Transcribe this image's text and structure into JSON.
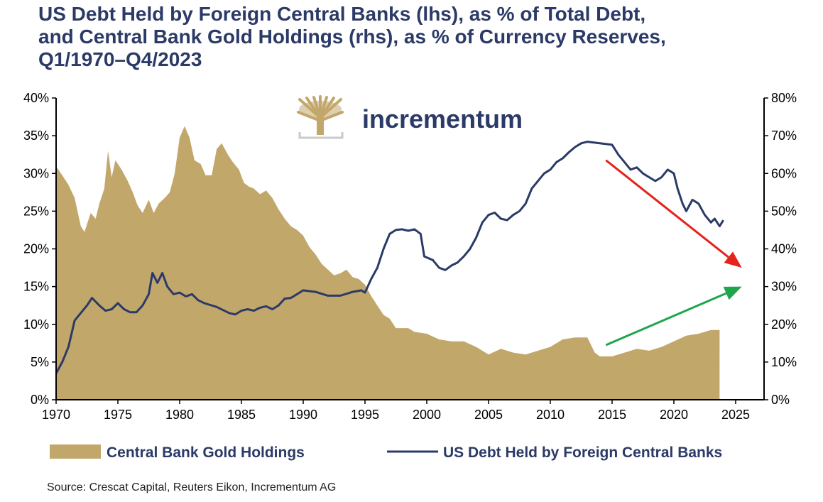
{
  "title_lines": [
    "US Debt Held by Foreign Central Banks (lhs), as % of Total Debt,",
    "and Central Bank Gold Holdings (rhs), as % of Currency Reserves,",
    "Q1/1970–Q4/2023"
  ],
  "logo": {
    "text": "incrementum",
    "icon": "tree-logo-icon"
  },
  "source": "Source: Crescat Capital, Reuters Eikon, Incrementum AG",
  "colors": {
    "gold": "#c2a76b",
    "navy": "#2b3a67",
    "red_arrow": "#e5231b",
    "green_arrow": "#1fa64a",
    "axis": "#000000"
  },
  "chart_data": {
    "type": "area",
    "x_ticks": [
      "1970",
      "1975",
      "1980",
      "1985",
      "1990",
      "1995",
      "2000",
      "2005",
      "2010",
      "2015",
      "2020",
      "2025"
    ],
    "xlim": [
      1970,
      2027.3
    ],
    "left_axis": {
      "ticks": [
        "0%",
        "5%",
        "10%",
        "15%",
        "20%",
        "25%",
        "30%",
        "35%",
        "40%"
      ],
      "ylim": [
        0,
        40
      ]
    },
    "right_axis": {
      "ticks": [
        "0%",
        "10%",
        "20%",
        "30%",
        "40%",
        "50%",
        "60%",
        "70%",
        "80%"
      ],
      "ylim": [
        0,
        80
      ]
    },
    "legend": {
      "position": "bottom"
    },
    "series": [
      {
        "name": "Central Bank Gold Holdings",
        "kind": "area",
        "axis": "right",
        "points": [
          [
            1970.0,
            61.9
          ],
          [
            1970.5,
            59.5
          ],
          [
            1971.0,
            57.0
          ],
          [
            1971.5,
            53.5
          ],
          [
            1972.0,
            46.0
          ],
          [
            1972.3,
            44.5
          ],
          [
            1972.8,
            49.5
          ],
          [
            1973.2,
            48.0
          ],
          [
            1973.5,
            52.0
          ],
          [
            1973.9,
            56.0
          ],
          [
            1974.2,
            66.0
          ],
          [
            1974.5,
            59.0
          ],
          [
            1974.8,
            63.5
          ],
          [
            1975.3,
            61.0
          ],
          [
            1975.8,
            58.0
          ],
          [
            1976.2,
            55.0
          ],
          [
            1976.6,
            51.5
          ],
          [
            1977.0,
            49.5
          ],
          [
            1977.5,
            53.0
          ],
          [
            1977.9,
            49.5
          ],
          [
            1978.3,
            52.0
          ],
          [
            1978.8,
            53.5
          ],
          [
            1979.2,
            55.0
          ],
          [
            1979.6,
            60.0
          ],
          [
            1980.0,
            69.5
          ],
          [
            1980.4,
            72.5
          ],
          [
            1980.8,
            69.5
          ],
          [
            1981.2,
            63.5
          ],
          [
            1981.7,
            62.5
          ],
          [
            1982.1,
            59.5
          ],
          [
            1982.6,
            59.5
          ],
          [
            1983.0,
            66.5
          ],
          [
            1983.4,
            68.0
          ],
          [
            1983.9,
            65.0
          ],
          [
            1984.3,
            63.0
          ],
          [
            1984.8,
            61.0
          ],
          [
            1985.2,
            57.5
          ],
          [
            1985.6,
            56.5
          ],
          [
            1986.0,
            56.0
          ],
          [
            1986.5,
            54.5
          ],
          [
            1987.0,
            55.5
          ],
          [
            1987.5,
            53.5
          ],
          [
            1988.0,
            50.5
          ],
          [
            1988.5,
            48.0
          ],
          [
            1989.0,
            46.0
          ],
          [
            1989.5,
            45.0
          ],
          [
            1990.0,
            43.5
          ],
          [
            1990.5,
            40.5
          ],
          [
            1991.0,
            38.5
          ],
          [
            1991.5,
            36.0
          ],
          [
            1992.0,
            34.5
          ],
          [
            1992.5,
            33.0
          ],
          [
            1993.0,
            33.5
          ],
          [
            1993.5,
            34.5
          ],
          [
            1994.0,
            32.5
          ],
          [
            1994.5,
            32.0
          ],
          [
            1995.0,
            30.5
          ],
          [
            1995.5,
            27.5
          ],
          [
            1996.0,
            25.0
          ],
          [
            1996.5,
            22.5
          ],
          [
            1997.0,
            21.5
          ],
          [
            1997.5,
            19.0
          ],
          [
            1998.5,
            19.0
          ],
          [
            1999.0,
            18.0
          ],
          [
            2000.0,
            17.5
          ],
          [
            2001.0,
            16.0
          ],
          [
            2002.0,
            15.5
          ],
          [
            2003.0,
            15.5
          ],
          [
            2004.0,
            14.0
          ],
          [
            2005.0,
            12.0
          ],
          [
            2006.0,
            13.5
          ],
          [
            2007.0,
            12.5
          ],
          [
            2008.0,
            12.0
          ],
          [
            2009.0,
            13.0
          ],
          [
            2010.0,
            14.0
          ],
          [
            2011.0,
            16.0
          ],
          [
            2012.0,
            16.5
          ],
          [
            2013.0,
            16.5
          ],
          [
            2013.6,
            12.5
          ],
          [
            2014.0,
            11.5
          ],
          [
            2015.0,
            11.5
          ],
          [
            2016.0,
            12.5
          ],
          [
            2017.0,
            13.5
          ],
          [
            2018.0,
            13.0
          ],
          [
            2019.0,
            14.0
          ],
          [
            2020.0,
            15.5
          ],
          [
            2021.0,
            17.0
          ],
          [
            2022.0,
            17.5
          ],
          [
            2023.0,
            18.5
          ],
          [
            2023.7,
            18.5
          ]
        ]
      },
      {
        "name": "US Debt Held by Foreign Central Banks",
        "kind": "line",
        "axis": "left",
        "points": [
          [
            1970.0,
            3.5
          ],
          [
            1970.5,
            5.0
          ],
          [
            1971.0,
            7.0
          ],
          [
            1971.5,
            10.5
          ],
          [
            1972.0,
            11.5
          ],
          [
            1972.5,
            12.5
          ],
          [
            1972.9,
            13.5
          ],
          [
            1973.5,
            12.5
          ],
          [
            1974.0,
            11.8
          ],
          [
            1974.5,
            12.0
          ],
          [
            1975.0,
            12.8
          ],
          [
            1975.5,
            12.0
          ],
          [
            1976.0,
            11.6
          ],
          [
            1976.5,
            11.6
          ],
          [
            1977.0,
            12.5
          ],
          [
            1977.5,
            14.0
          ],
          [
            1977.8,
            16.8
          ],
          [
            1978.2,
            15.5
          ],
          [
            1978.6,
            16.8
          ],
          [
            1979.0,
            15.0
          ],
          [
            1979.5,
            14.0
          ],
          [
            1980.0,
            14.2
          ],
          [
            1980.5,
            13.7
          ],
          [
            1981.0,
            14.0
          ],
          [
            1981.5,
            13.2
          ],
          [
            1982.0,
            12.8
          ],
          [
            1983.0,
            12.3
          ],
          [
            1984.0,
            11.5
          ],
          [
            1984.5,
            11.3
          ],
          [
            1985.0,
            11.8
          ],
          [
            1985.5,
            12.0
          ],
          [
            1986.0,
            11.8
          ],
          [
            1986.5,
            12.2
          ],
          [
            1987.0,
            12.4
          ],
          [
            1987.5,
            12.0
          ],
          [
            1988.0,
            12.5
          ],
          [
            1988.5,
            13.4
          ],
          [
            1989.0,
            13.5
          ],
          [
            1989.5,
            14.0
          ],
          [
            1990.0,
            14.5
          ],
          [
            1990.5,
            14.4
          ],
          [
            1991.0,
            14.3
          ],
          [
            1992.0,
            13.8
          ],
          [
            1993.0,
            13.8
          ],
          [
            1994.0,
            14.3
          ],
          [
            1994.7,
            14.5
          ],
          [
            1995.0,
            14.2
          ],
          [
            1995.5,
            16.0
          ],
          [
            1996.0,
            17.5
          ],
          [
            1996.5,
            20.0
          ],
          [
            1997.0,
            22.0
          ],
          [
            1997.5,
            22.5
          ],
          [
            1998.0,
            22.6
          ],
          [
            1998.5,
            22.4
          ],
          [
            1999.0,
            22.6
          ],
          [
            1999.5,
            22.0
          ],
          [
            1999.8,
            19.0
          ],
          [
            2000.5,
            18.5
          ],
          [
            2001.0,
            17.5
          ],
          [
            2001.5,
            17.2
          ],
          [
            2002.0,
            17.8
          ],
          [
            2002.5,
            18.2
          ],
          [
            2003.0,
            19.0
          ],
          [
            2003.5,
            20.0
          ],
          [
            2004.0,
            21.5
          ],
          [
            2004.5,
            23.5
          ],
          [
            2005.0,
            24.5
          ],
          [
            2005.5,
            24.8
          ],
          [
            2006.0,
            24.0
          ],
          [
            2006.5,
            23.8
          ],
          [
            2007.0,
            24.5
          ],
          [
            2007.5,
            25.0
          ],
          [
            2008.0,
            26.0
          ],
          [
            2008.5,
            28.0
          ],
          [
            2009.0,
            29.0
          ],
          [
            2009.5,
            30.0
          ],
          [
            2010.0,
            30.5
          ],
          [
            2010.5,
            31.5
          ],
          [
            2011.0,
            32.0
          ],
          [
            2011.5,
            32.8
          ],
          [
            2012.0,
            33.5
          ],
          [
            2012.5,
            34.0
          ],
          [
            2013.0,
            34.2
          ],
          [
            2014.0,
            34.0
          ],
          [
            2015.0,
            33.8
          ],
          [
            2015.5,
            32.5
          ],
          [
            2016.0,
            31.5
          ],
          [
            2016.5,
            30.5
          ],
          [
            2017.0,
            30.8
          ],
          [
            2017.5,
            30.0
          ],
          [
            2018.0,
            29.5
          ],
          [
            2018.5,
            29.0
          ],
          [
            2019.0,
            29.5
          ],
          [
            2019.5,
            30.5
          ],
          [
            2020.0,
            30.0
          ],
          [
            2020.3,
            28.0
          ],
          [
            2020.7,
            26.0
          ],
          [
            2021.0,
            25.0
          ],
          [
            2021.5,
            26.5
          ],
          [
            2022.0,
            26.0
          ],
          [
            2022.5,
            24.5
          ],
          [
            2023.0,
            23.5
          ],
          [
            2023.3,
            24.0
          ],
          [
            2023.7,
            23.0
          ],
          [
            2024.0,
            23.8
          ]
        ]
      }
    ],
    "annotations": [
      {
        "name": "red-down-arrow",
        "color": "red",
        "from": [
          2014.5,
          63.5
        ],
        "to": [
          2025.5,
          35.0
        ],
        "axis": "right"
      },
      {
        "name": "green-up-arrow",
        "color": "green",
        "from": [
          2014.5,
          14.5
        ],
        "to": [
          2025.5,
          30.0
        ],
        "axis": "right"
      }
    ]
  }
}
